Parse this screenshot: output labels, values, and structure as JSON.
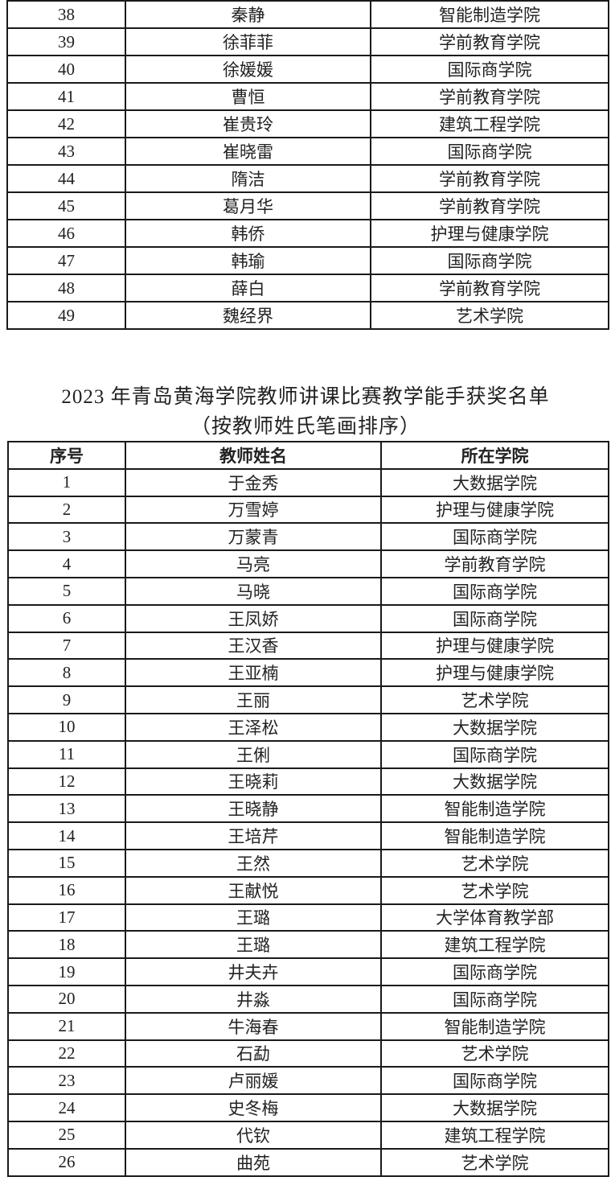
{
  "table_top": {
    "rows": [
      [
        "38",
        "秦静",
        "智能制造学院"
      ],
      [
        "39",
        "徐菲菲",
        "学前教育学院"
      ],
      [
        "40",
        "徐媛媛",
        "国际商学院"
      ],
      [
        "41",
        "曹恒",
        "学前教育学院"
      ],
      [
        "42",
        "崔贵玲",
        "建筑工程学院"
      ],
      [
        "43",
        "崔晓雷",
        "国际商学院"
      ],
      [
        "44",
        "隋洁",
        "学前教育学院"
      ],
      [
        "45",
        "葛月华",
        "学前教育学院"
      ],
      [
        "46",
        "韩侨",
        "护理与健康学院"
      ],
      [
        "47",
        "韩瑜",
        "国际商学院"
      ],
      [
        "48",
        "薛白",
        "学前教育学院"
      ],
      [
        "49",
        "魏经界",
        "艺术学院"
      ]
    ]
  },
  "section": {
    "title": "2023 年青岛黄海学院教师讲课比赛教学能手获奖名单",
    "subtitle": "（按教师姓氏笔画排序）"
  },
  "table_main": {
    "headers": [
      "序号",
      "教师姓名",
      "所在学院"
    ],
    "rows": [
      [
        "1",
        "于金秀",
        "大数据学院"
      ],
      [
        "2",
        "万雪婷",
        "护理与健康学院"
      ],
      [
        "3",
        "万蒙青",
        "国际商学院"
      ],
      [
        "4",
        "马亮",
        "学前教育学院"
      ],
      [
        "5",
        "马晓",
        "国际商学院"
      ],
      [
        "6",
        "王凤娇",
        "国际商学院"
      ],
      [
        "7",
        "王汉香",
        "护理与健康学院"
      ],
      [
        "8",
        "王亚楠",
        "护理与健康学院"
      ],
      [
        "9",
        "王丽",
        "艺术学院"
      ],
      [
        "10",
        "王泽松",
        "大数据学院"
      ],
      [
        "11",
        "王俐",
        "国际商学院"
      ],
      [
        "12",
        "王晓莉",
        "大数据学院"
      ],
      [
        "13",
        "王晓静",
        "智能制造学院"
      ],
      [
        "14",
        "王培芹",
        "智能制造学院"
      ],
      [
        "15",
        "王然",
        "艺术学院"
      ],
      [
        "16",
        "王献悦",
        "艺术学院"
      ],
      [
        "17",
        "王璐",
        "大学体育教学部"
      ],
      [
        "18",
        "王璐",
        "建筑工程学院"
      ],
      [
        "19",
        "井夫卉",
        "国际商学院"
      ],
      [
        "20",
        "井淼",
        "国际商学院"
      ],
      [
        "21",
        "牛海春",
        "智能制造学院"
      ],
      [
        "22",
        "石勐",
        "艺术学院"
      ],
      [
        "23",
        "卢丽媛",
        "国际商学院"
      ],
      [
        "24",
        "史冬梅",
        "大数据学院"
      ],
      [
        "25",
        "代钦",
        "建筑工程学院"
      ],
      [
        "26",
        "曲苑",
        "艺术学院"
      ]
    ]
  }
}
